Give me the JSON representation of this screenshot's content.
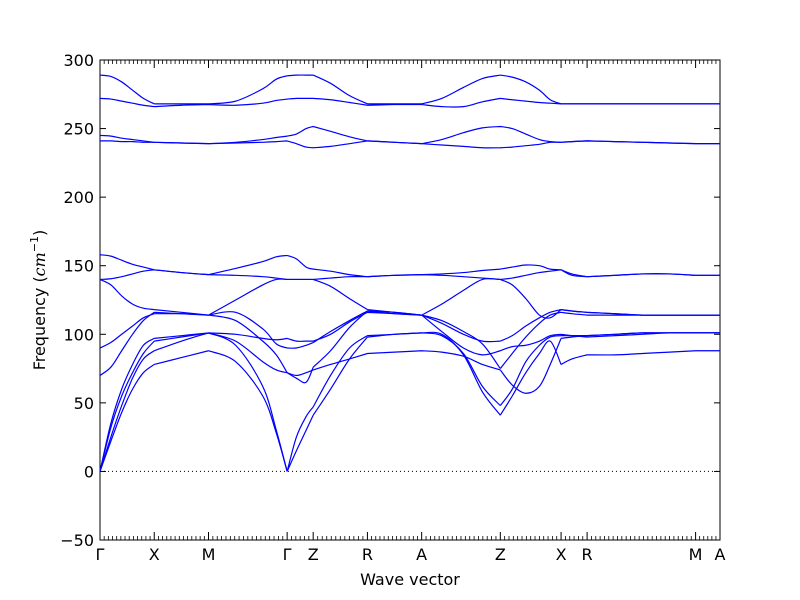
{
  "chart_data": {
    "type": "line",
    "title": "",
    "xlabel": "Wave vector",
    "ylabel": "Frequency ($cm^{-1}$)",
    "ylabel_parts": {
      "prefix": "Frequency (",
      "unit": "cm",
      "exponent": "−1",
      "suffix": ")"
    },
    "ylim": [
      -50,
      300
    ],
    "yticks": [
      -50,
      0,
      50,
      100,
      150,
      200,
      250,
      300
    ],
    "grid": false,
    "zero_line": {
      "y": 0,
      "style": "dotted"
    },
    "line_color": "#0000ff",
    "x_path_labels": [
      "Γ",
      "X",
      "M",
      "Γ",
      "Z",
      "R",
      "A",
      "Z",
      "X",
      "R",
      "M",
      "A"
    ],
    "x_path_positions": [
      0.0,
      1.0,
      2.0,
      3.45,
      3.93,
      4.93,
      5.93,
      7.38,
      8.5,
      8.98,
      10.98,
      11.43
    ],
    "x_range": [
      0,
      11.43
    ],
    "segment_points": {
      "G-X": [
        0,
        0.2,
        0.4,
        0.6,
        0.8,
        1.0
      ],
      "X-M": [
        1.0,
        1.5,
        2.0
      ],
      "M-G": [
        2.0,
        2.5,
        3.0,
        3.25,
        3.45
      ],
      "G-Z": [
        3.45,
        3.62,
        3.8,
        3.93
      ],
      "Z-R": [
        3.93,
        4.25,
        4.6,
        4.93
      ],
      "R-A": [
        4.93,
        5.43,
        5.93
      ],
      "A-Z": [
        5.93,
        6.3,
        6.7,
        7.05,
        7.38
      ],
      "Z-X": [
        7.38,
        7.6,
        7.85,
        8.1,
        8.3,
        8.5
      ],
      "X-R": [
        8.5,
        8.7,
        8.98
      ],
      "R-M": [
        8.98,
        9.5,
        10.0,
        10.5,
        10.98
      ],
      "M-A": [
        10.98,
        11.2,
        11.43
      ]
    },
    "series": [
      {
        "values": {
          "G-X": [
            0,
            35,
            60,
            78,
            92,
            97
          ],
          "X-M": [
            97,
            99,
            101
          ],
          "M-G": [
            101,
            100,
            97,
            96,
            97
          ],
          "G-Z": [
            97,
            95,
            95,
            95
          ],
          "Z-R": [
            95,
            100,
            109,
            116
          ],
          "R-A": [
            116,
            115,
            114
          ],
          "A-Z": [
            114,
            102,
            90,
            85,
            88
          ],
          "Z-X": [
            88,
            91,
            92,
            95,
            99,
            100
          ],
          "X-R": [
            100,
            99,
            98
          ],
          "R-M": [
            98,
            99,
            100,
            101,
            101
          ],
          "M-A": [
            101,
            101,
            101
          ]
        }
      },
      {
        "values": {
          "G-X": [
            0,
            32,
            55,
            72,
            86,
            95
          ],
          "X-M": [
            95,
            98,
            101
          ],
          "M-G": [
            101,
            95,
            80,
            74,
            72
          ],
          "G-Z": [
            72,
            70,
            72,
            74
          ],
          "Z-R": [
            74,
            78,
            82,
            86
          ],
          "R-A": [
            86,
            87,
            88
          ],
          "A-Z": [
            88,
            87,
            84,
            78,
            74
          ],
          "Z-X": [
            74,
            63,
            57,
            62,
            78,
            97
          ],
          "X-R": [
            97,
            98,
            99
          ],
          "R-M": [
            99,
            100,
            101,
            101,
            101
          ],
          "M-A": [
            101,
            101,
            101
          ]
        }
      },
      {
        "values": {
          "G-X": [
            0,
            22,
            43,
            60,
            72,
            78
          ],
          "X-M": [
            78,
            83,
            88
          ],
          "M-G": [
            88,
            80,
            55,
            28,
            0
          ],
          "G-Z": [
            0,
            15,
            30,
            41
          ],
          "Z-R": [
            41,
            60,
            82,
            98
          ],
          "R-A": [
            98,
            100,
            101
          ],
          "A-Z": [
            101,
            100,
            85,
            58,
            41
          ],
          "Z-X": [
            41,
            55,
            72,
            86,
            95,
            78
          ],
          "X-R": [
            78,
            82,
            85
          ],
          "R-M": [
            85,
            85,
            86,
            87,
            88
          ],
          "M-A": [
            88,
            88,
            88
          ]
        }
      },
      {
        "values": {
          "G-X": [
            0,
            25,
            48,
            68,
            82,
            88
          ],
          "X-M": [
            88,
            95,
            101
          ],
          "M-G": [
            101,
            92,
            62,
            30,
            0
          ],
          "G-Z": [
            0,
            25,
            40,
            47
          ],
          "Z-R": [
            47,
            70,
            90,
            99
          ],
          "R-A": [
            99,
            100,
            101
          ],
          "A-Z": [
            101,
            99,
            86,
            62,
            48
          ],
          "Z-X": [
            48,
            60,
            80,
            92,
            98,
            99
          ],
          "X-R": [
            99,
            99,
            99
          ],
          "R-M": [
            99,
            100,
            101,
            101,
            101
          ],
          "M-A": [
            101,
            101,
            101
          ]
        }
      },
      {
        "values": {
          "G-X": [
            70,
            76,
            88,
            100,
            110,
            116
          ],
          "X-M": [
            116,
            115,
            114
          ],
          "M-G": [
            114,
            110,
            95,
            85,
            72
          ],
          "G-Z": [
            72,
            68,
            65,
            76
          ],
          "Z-R": [
            76,
            88,
            105,
            117
          ],
          "R-A": [
            117,
            115,
            114
          ],
          "A-Z": [
            114,
            110,
            102,
            93,
            75
          ],
          "Z-X": [
            75,
            86,
            98,
            108,
            114,
            116
          ],
          "X-R": [
            116,
            115,
            114
          ],
          "R-M": [
            114,
            114,
            114,
            114,
            114
          ],
          "M-A": [
            114,
            114,
            114
          ]
        }
      },
      {
        "values": {
          "G-X": [
            90,
            94,
            100,
            106,
            112,
            115
          ],
          "X-M": [
            115,
            115,
            114
          ],
          "M-G": [
            114,
            116,
            104,
            93,
            90
          ],
          "G-Z": [
            90,
            90,
            92,
            94
          ],
          "Z-R": [
            94,
            102,
            110,
            117
          ],
          "R-A": [
            117,
            116,
            114
          ],
          "A-Z": [
            114,
            122,
            132,
            140,
            140
          ],
          "Z-X": [
            140,
            136,
            126,
            114,
            112,
            118
          ],
          "X-R": [
            118,
            117,
            116
          ],
          "R-M": [
            116,
            115,
            114,
            114,
            114
          ],
          "M-A": [
            114,
            114,
            114
          ]
        }
      },
      {
        "values": {
          "G-X": [
            140,
            136,
            128,
            122,
            119,
            118
          ],
          "X-M": [
            118,
            116,
            114
          ],
          "M-G": [
            114,
            125,
            136,
            140,
            140
          ],
          "G-Z": [
            140,
            140,
            140,
            140
          ],
          "Z-R": [
            140,
            135,
            126,
            118
          ],
          "R-A": [
            118,
            116,
            114
          ],
          "A-Z": [
            114,
            108,
            100,
            95,
            95
          ],
          "Z-X": [
            95,
            99,
            106,
            112,
            116,
            118
          ],
          "X-R": [
            118,
            117,
            116
          ],
          "R-M": [
            116,
            115,
            114,
            114,
            114
          ],
          "M-A": [
            114,
            114,
            114
          ]
        }
      },
      {
        "values": {
          "G-X": [
            140,
            140.5,
            142,
            144,
            146,
            147
          ],
          "X-M": [
            147,
            145,
            143.5
          ],
          "M-G": [
            143.5,
            143,
            142,
            141,
            140
          ],
          "G-Z": [
            140,
            140,
            140,
            140
          ],
          "Z-R": [
            140,
            141,
            142,
            142
          ],
          "R-A": [
            142,
            143,
            143.5
          ],
          "A-Z": [
            143.5,
            143,
            142,
            141,
            140
          ],
          "Z-X": [
            140,
            141,
            143,
            145,
            146,
            147
          ],
          "X-R": [
            147,
            144,
            142
          ],
          "R-M": [
            142,
            143,
            144,
            144,
            143
          ],
          "M-A": [
            143,
            143,
            143
          ]
        }
      },
      {
        "values": {
          "G-X": [
            158,
            157,
            154,
            151,
            149,
            147
          ],
          "X-M": [
            147,
            145,
            143.5
          ],
          "M-G": [
            143.5,
            148,
            153,
            156.5,
            157.5
          ],
          "G-Z": [
            157.5,
            155,
            149,
            147.5
          ],
          "Z-R": [
            147.5,
            146,
            143.5,
            142
          ],
          "R-A": [
            142,
            143,
            143.5
          ],
          "A-Z": [
            143.5,
            144,
            145,
            146.5,
            147.5
          ],
          "Z-X": [
            147.5,
            149,
            150.5,
            150,
            147.5,
            147
          ],
          "X-R": [
            147,
            143,
            142
          ],
          "R-M": [
            142,
            143,
            144,
            144,
            143
          ],
          "M-A": [
            143,
            143,
            143
          ]
        }
      },
      {
        "values": {
          "G-X": [
            241,
            241,
            240.5,
            240.5,
            240,
            240
          ],
          "X-M": [
            240,
            239.5,
            239
          ],
          "M-G": [
            239,
            239.5,
            240,
            240.5,
            241
          ],
          "G-Z": [
            241,
            239,
            236.5,
            236
          ],
          "Z-R": [
            236,
            237,
            239,
            241
          ],
          "R-A": [
            241,
            240,
            239
          ],
          "A-Z": [
            239,
            238,
            237,
            236,
            236
          ],
          "Z-X": [
            236,
            236.5,
            237.5,
            238.5,
            240,
            240
          ],
          "X-R": [
            240,
            240.5,
            241
          ],
          "R-M": [
            241,
            240.5,
            240,
            239.5,
            239
          ],
          "M-A": [
            239,
            239,
            239
          ]
        }
      },
      {
        "values": {
          "G-X": [
            245,
            244.5,
            243,
            242,
            241,
            240
          ],
          "X-M": [
            240,
            239.5,
            239
          ],
          "M-G": [
            239,
            240,
            242,
            243.5,
            244.5
          ],
          "G-Z": [
            244.5,
            246,
            250,
            251.5
          ],
          "Z-R": [
            251.5,
            248,
            244,
            241
          ],
          "R-A": [
            241,
            240,
            239
          ],
          "A-Z": [
            239,
            242,
            247,
            250.5,
            251.5
          ],
          "Z-X": [
            251.5,
            250,
            246,
            242,
            240.5,
            240
          ],
          "X-R": [
            240,
            240.5,
            241
          ],
          "R-M": [
            241,
            240.5,
            240,
            239.5,
            239
          ],
          "M-A": [
            239,
            239,
            239
          ]
        }
      },
      {
        "values": {
          "G-X": [
            272,
            271.5,
            270,
            268.5,
            267,
            266
          ],
          "X-M": [
            266,
            267,
            267.5
          ],
          "M-G": [
            267.5,
            267,
            268.5,
            270.5,
            271.5
          ],
          "G-Z": [
            271.5,
            272,
            272,
            272
          ],
          "Z-R": [
            272,
            271,
            269,
            267
          ],
          "R-A": [
            267,
            267.5,
            267.5
          ],
          "A-Z": [
            267.5,
            266,
            266,
            269.5,
            272
          ],
          "Z-X": [
            272,
            271,
            270,
            269,
            268.5,
            268
          ],
          "X-R": [
            268,
            268,
            268
          ],
          "R-M": [
            268,
            268,
            268,
            268,
            268
          ],
          "M-A": [
            268,
            268,
            268
          ]
        }
      },
      {
        "values": {
          "G-X": [
            289,
            288,
            284,
            278,
            272,
            268
          ],
          "X-M": [
            268,
            268,
            268
          ],
          "M-G": [
            268,
            270,
            279,
            286,
            288.5
          ],
          "G-Z": [
            288.5,
            289,
            289,
            289
          ],
          "Z-R": [
            289,
            283,
            274,
            268
          ],
          "R-A": [
            268,
            268,
            268
          ],
          "A-Z": [
            268,
            272,
            280,
            286.5,
            289
          ],
          "Z-X": [
            289,
            287.5,
            284,
            278,
            271,
            268
          ],
          "X-R": [
            268,
            268,
            268
          ],
          "R-M": [
            268,
            268,
            268,
            268,
            268
          ],
          "M-A": [
            268,
            268,
            268
          ]
        }
      }
    ]
  }
}
